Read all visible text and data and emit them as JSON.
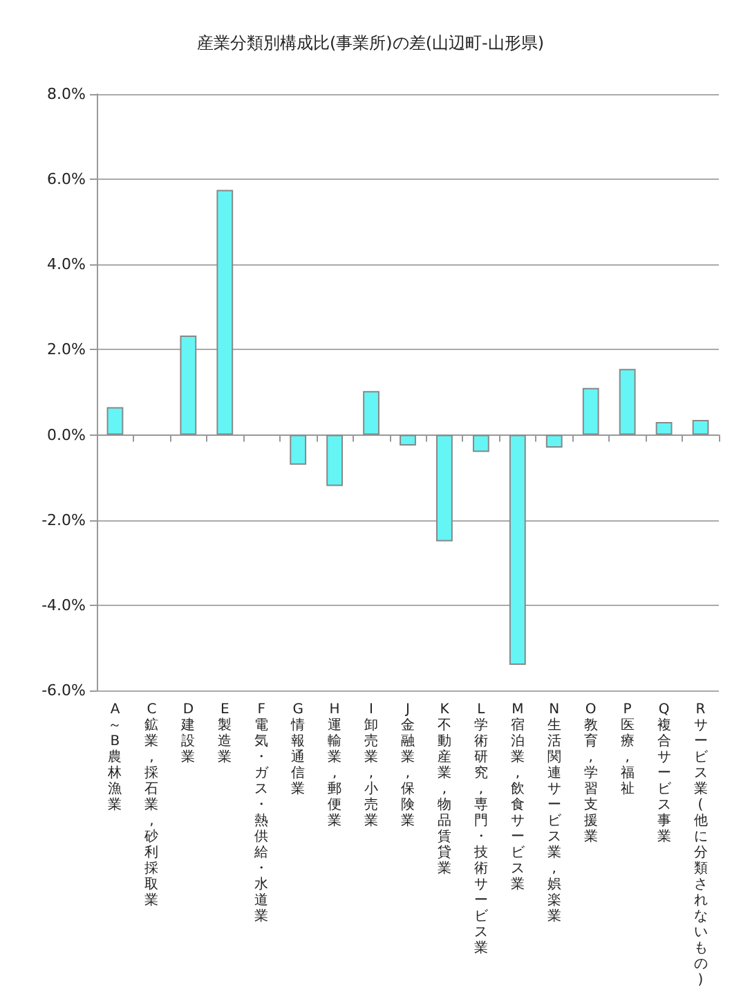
{
  "chart_data": {
    "type": "bar",
    "title": "産業分類別構成比(事業所)の差(山辺町-山形県)",
    "categories": [
      "A～B 農林漁業",
      "C 鉱業, 採石業, 砂利採取業",
      "D 建設業",
      "E 製造業",
      "F 電気・ガス・熱供給・水道業",
      "G 情報通信業",
      "H 運輸業, 郵便業",
      "I 卸売業, 小売業",
      "J 金融業, 保険業",
      "K 不動産業, 物品賃貸業",
      "L 学術研究, 専門・技術サービス業",
      "M 宿泊業, 飲食サービス業",
      "N 生活関連サービス業, 娯楽業",
      "O 教育, 学習支援業",
      "P 医療, 福祉",
      "Q 複合サービス事業",
      "R サービス業(他に分類されないもの)"
    ],
    "values": [
      0.65,
      0,
      2.33,
      5.75,
      0,
      -0.7,
      -1.2,
      1.03,
      -0.25,
      -2.5,
      -0.4,
      -5.4,
      -0.3,
      1.1,
      1.55,
      0.3,
      0.35
    ],
    "color": "#66f5f5",
    "ylim": [
      -6,
      8
    ],
    "yticks": [
      {
        "value": -6,
        "label": "-6.0%"
      },
      {
        "value": -4,
        "label": "-4.0%"
      },
      {
        "value": -2,
        "label": "-2.0%"
      },
      {
        "value": 0,
        "label": "0.0%"
      },
      {
        "value": 2,
        "label": "2.0%"
      },
      {
        "value": 4,
        "label": "4.0%"
      },
      {
        "value": 6,
        "label": "6.0%"
      },
      {
        "value": 8,
        "label": "8.0%"
      }
    ],
    "grid": "y"
  }
}
